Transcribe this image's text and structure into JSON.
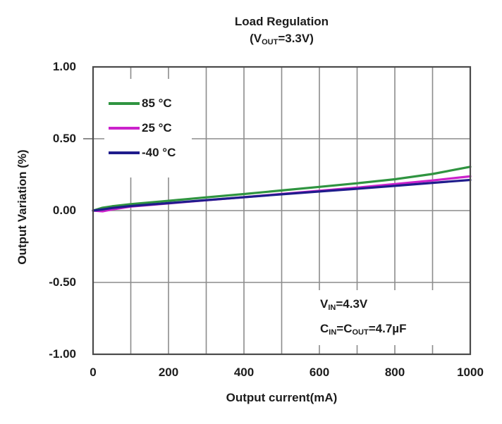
{
  "title": {
    "line1": "Load Regulation",
    "line2_prefix": "(V",
    "line2_sub": "OUT",
    "line2_suffix": "=3.3V)"
  },
  "axes": {
    "x": {
      "label": "Output current(mA)",
      "ticks": [
        "0",
        "200",
        "400",
        "600",
        "800",
        "1000"
      ]
    },
    "y": {
      "label": "Output Variation (%)",
      "ticks": [
        "1.00",
        "0.50",
        "0.00",
        "-0.50",
        "-1.00"
      ]
    }
  },
  "legend": [
    {
      "label": "85 °C",
      "color": "#2f9440"
    },
    {
      "label": "25 °C",
      "color": "#cb22cb"
    },
    {
      "label": "-40 °C",
      "color": "#1f1c8c"
    }
  ],
  "annotation": {
    "l1_p1": "V",
    "l1_s1": "IN",
    "l1_p2": "=4.3V",
    "l2_p1": "C",
    "l2_s1": "IN",
    "l2_p2": "=C",
    "l2_s2": "OUT",
    "l2_p3": "=4.7µF"
  },
  "colors": {
    "grid": "#8c8c8c",
    "frame": "#4a4a4a",
    "green": "#2f9440",
    "magenta": "#cb22cb",
    "navy": "#1f1c8c"
  },
  "chart_data": {
    "type": "line",
    "title": "Load Regulation (VOUT=3.3V)",
    "xlabel": "Output current(mA)",
    "ylabel": "Output Variation (%)",
    "xlim": [
      0,
      1000
    ],
    "ylim": [
      -1,
      1
    ],
    "x_major_tick_step": 200,
    "x_grid_step": 100,
    "y_grid_step": 0.5,
    "grid": true,
    "legend_position": "upper left",
    "conditions": [
      "VIN=4.3V",
      "CIN=COUT=4.7µF"
    ],
    "x": [
      0,
      25,
      50,
      100,
      200,
      300,
      400,
      500,
      600,
      700,
      800,
      900,
      1000
    ],
    "series": [
      {
        "name": "85°C",
        "color": "#2f9440",
        "values": [
          0.0,
          0.02,
          0.03,
          0.045,
          0.068,
          0.092,
          0.115,
          0.14,
          0.165,
          0.19,
          0.218,
          0.255,
          0.305
        ]
      },
      {
        "name": "25°C",
        "color": "#cb22cb",
        "values": [
          0.0,
          -0.005,
          0.008,
          0.028,
          0.05,
          0.072,
          0.093,
          0.116,
          0.138,
          0.16,
          0.185,
          0.21,
          0.238
        ]
      },
      {
        "name": "-40°C",
        "color": "#1f1c8c",
        "values": [
          0.0,
          0.008,
          0.018,
          0.032,
          0.052,
          0.073,
          0.093,
          0.113,
          0.133,
          0.152,
          0.172,
          0.193,
          0.213
        ]
      }
    ]
  }
}
